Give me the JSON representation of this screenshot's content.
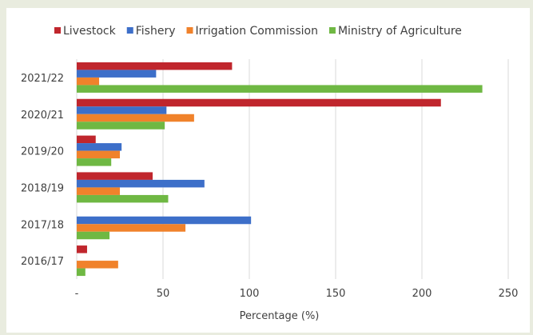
{
  "chart_data": {
    "type": "bar",
    "orientation": "horizontal",
    "categories": [
      "2021/22",
      "2020/21",
      "2019/20",
      "2018/19",
      "2017/18",
      "2016/17"
    ],
    "series": [
      {
        "name": "Livestock",
        "color": "#c0262d",
        "values": [
          90,
          211,
          11,
          44,
          0,
          6
        ]
      },
      {
        "name": "Fishery",
        "color": "#3d6fc9",
        "values": [
          46,
          52,
          26,
          74,
          101,
          0
        ]
      },
      {
        "name": "Irrigation Commission",
        "color": "#f0822b",
        "values": [
          13,
          68,
          25,
          25,
          63,
          24
        ]
      },
      {
        "name": "Ministry of Agriculture",
        "color": "#6fb843",
        "values": [
          235,
          51,
          20,
          53,
          19,
          5
        ]
      }
    ],
    "xticks": [
      "-",
      "50",
      "100",
      "150",
      "200",
      "250"
    ],
    "xlim": [
      0,
      260
    ],
    "xlabel": "Percentage (%)",
    "ylabel": "",
    "title": "",
    "grid": "vertical",
    "legend_position": "top"
  }
}
